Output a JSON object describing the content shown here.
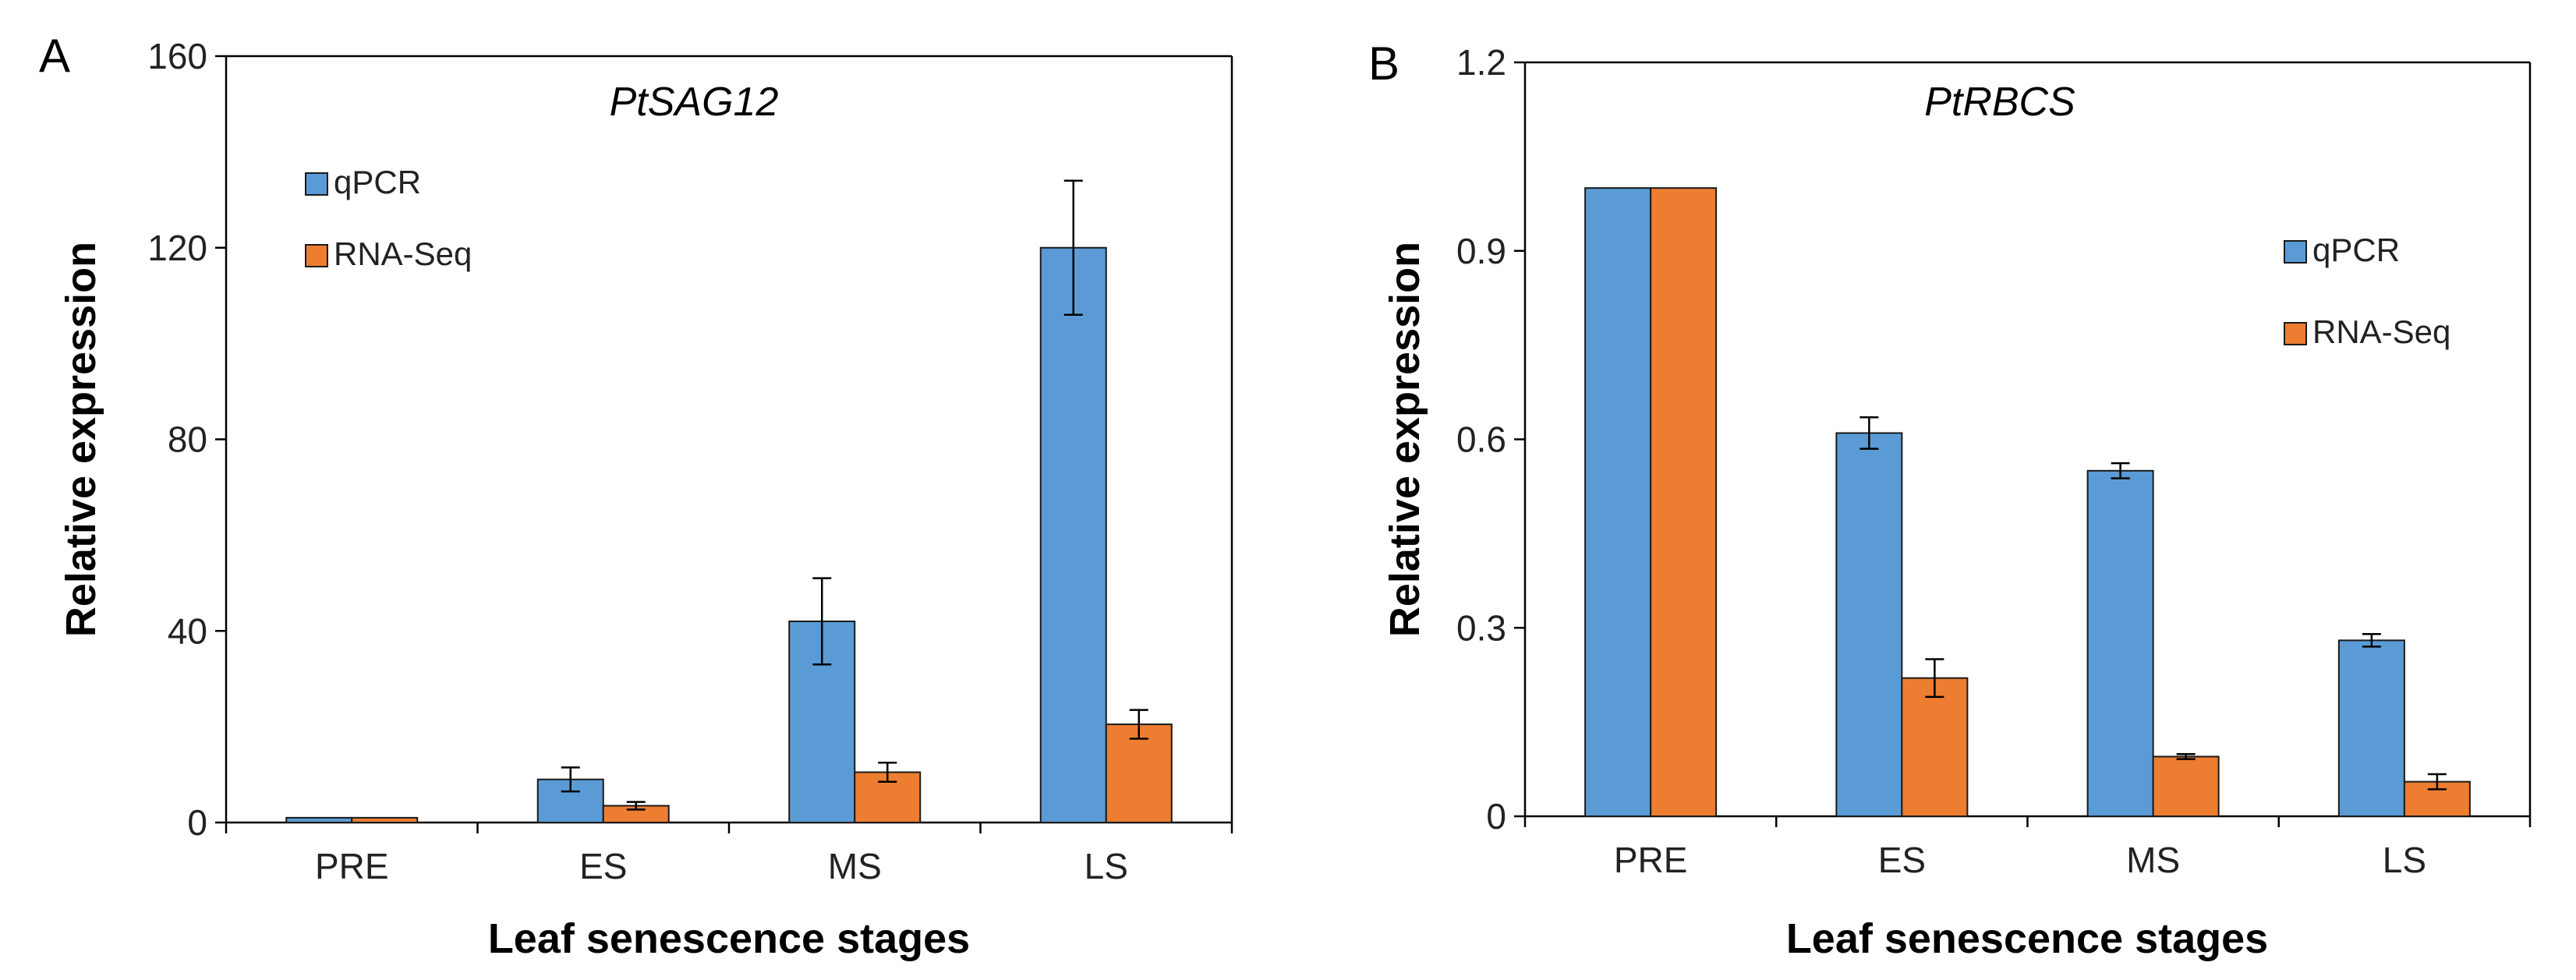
{
  "chart_data": [
    {
      "type": "bar",
      "panel": "A",
      "title": "PtSAG12",
      "xlabel": "Leaf senescence stages",
      "ylabel": "Relative expression",
      "categories": [
        "PRE",
        "ES",
        "MS",
        "LS"
      ],
      "ylim": [
        0,
        160
      ],
      "yticks": [
        0,
        40,
        80,
        120,
        160
      ],
      "ytick_labels": [
        "0",
        "40",
        "80",
        "120",
        "160"
      ],
      "legend_position": "top-left",
      "series": [
        {
          "name": "qPCR",
          "color": "#5B9BD5",
          "values": [
            1,
            9,
            42,
            120
          ],
          "errors": [
            0,
            2.5,
            9,
            14
          ]
        },
        {
          "name": "RNA-Seq",
          "color": "#ED7D31",
          "values": [
            1,
            3.5,
            10.5,
            20.5
          ],
          "errors": [
            0,
            0.8,
            2,
            3
          ]
        }
      ]
    },
    {
      "type": "bar",
      "panel": "B",
      "title": "PtRBCS",
      "xlabel": "Leaf senescence stages",
      "ylabel": "Relative expression",
      "categories": [
        "PRE",
        "ES",
        "MS",
        "LS"
      ],
      "ylim": [
        0,
        1.2
      ],
      "yticks": [
        0,
        0.3,
        0.6,
        0.9,
        1.2
      ],
      "ytick_labels": [
        "0",
        "0.3",
        "0.6",
        "0.9",
        "1.2"
      ],
      "legend_position": "top-right",
      "series": [
        {
          "name": "qPCR",
          "color": "#5B9BD5",
          "values": [
            1.0,
            0.61,
            0.55,
            0.28
          ],
          "errors": [
            0,
            0.025,
            0.012,
            0.01
          ]
        },
        {
          "name": "RNA-Seq",
          "color": "#ED7D31",
          "values": [
            1.0,
            0.22,
            0.095,
            0.055
          ],
          "errors": [
            0,
            0.03,
            0.004,
            0.012
          ]
        }
      ]
    }
  ]
}
